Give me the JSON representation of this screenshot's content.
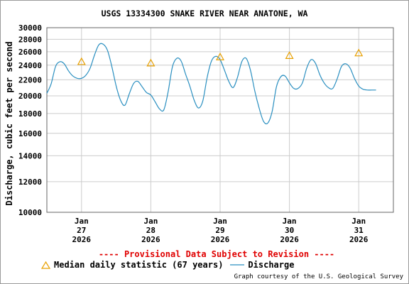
{
  "chart_data": {
    "type": "line",
    "title": "USGS 13334300 SNAKE RIVER NEAR ANATONE, WA",
    "ylabel": "Discharge, cubic feet per second",
    "xlabel": "",
    "y_scale": "log",
    "ylim": [
      10000,
      30000
    ],
    "y_ticks": [
      {
        "value": 10000,
        "label": "10000"
      },
      {
        "value": 12000,
        "label": "12000"
      },
      {
        "value": 14000,
        "label": "14000"
      },
      {
        "value": 16000,
        "label": "16000"
      },
      {
        "value": 18000,
        "label": "18000"
      },
      {
        "value": 20000,
        "label": "20000"
      },
      {
        "value": 22000,
        "label": "22000"
      },
      {
        "value": 24000,
        "label": "24000"
      },
      {
        "value": 26000,
        "label": "26000"
      },
      {
        "value": 28000,
        "label": "28000"
      },
      {
        "value": 30000,
        "label": "30000"
      }
    ],
    "xlim": [
      "2026-01-26 12:00",
      "2026-01-31 12:00"
    ],
    "x_ticks": [
      {
        "x": "2026-01-27 00:00",
        "lines": [
          "Jan",
          "27",
          "2026"
        ]
      },
      {
        "x": "2026-01-28 00:00",
        "lines": [
          "Jan",
          "28",
          "2026"
        ]
      },
      {
        "x": "2026-01-29 00:00",
        "lines": [
          "Jan",
          "29",
          "2026"
        ]
      },
      {
        "x": "2026-01-30 00:00",
        "lines": [
          "Jan",
          "30",
          "2026"
        ]
      },
      {
        "x": "2026-01-31 00:00",
        "lines": [
          "Jan",
          "31",
          "2026"
        ]
      }
    ],
    "grid": true,
    "series": [
      {
        "name": "Discharge",
        "color": "#2a8fc0",
        "points": [
          [
            "2026-01-26 12:00",
            20300
          ],
          [
            "2026-01-26 13:30",
            21500
          ],
          [
            "2026-01-26 15:00",
            23800
          ],
          [
            "2026-01-26 16:30",
            24500
          ],
          [
            "2026-01-26 18:00",
            24200
          ],
          [
            "2026-01-26 19:30",
            23200
          ],
          [
            "2026-01-26 21:00",
            22500
          ],
          [
            "2026-01-26 22:30",
            22200
          ],
          [
            "2026-01-27 00:00",
            22200
          ],
          [
            "2026-01-27 01:30",
            22600
          ],
          [
            "2026-01-27 03:00",
            23600
          ],
          [
            "2026-01-27 04:30",
            25500
          ],
          [
            "2026-01-27 06:00",
            27100
          ],
          [
            "2026-01-27 07:30",
            27200
          ],
          [
            "2026-01-27 09:00",
            26200
          ],
          [
            "2026-01-27 10:30",
            23800
          ],
          [
            "2026-01-27 12:00",
            21200
          ],
          [
            "2026-01-27 13:30",
            19500
          ],
          [
            "2026-01-27 15:00",
            18900
          ],
          [
            "2026-01-27 16:30",
            20200
          ],
          [
            "2026-01-27 18:00",
            21500
          ],
          [
            "2026-01-27 19:30",
            21800
          ],
          [
            "2026-01-27 21:00",
            21100
          ],
          [
            "2026-01-27 22:30",
            20400
          ],
          [
            "2026-01-28 00:00",
            20100
          ],
          [
            "2026-01-28 01:30",
            19300
          ],
          [
            "2026-01-28 03:00",
            18500
          ],
          [
            "2026-01-28 04:30",
            18400
          ],
          [
            "2026-01-28 06:00",
            20500
          ],
          [
            "2026-01-28 07:30",
            23800
          ],
          [
            "2026-01-28 09:00",
            25000
          ],
          [
            "2026-01-28 10:30",
            24600
          ],
          [
            "2026-01-28 12:00",
            22800
          ],
          [
            "2026-01-28 13:30",
            21200
          ],
          [
            "2026-01-28 15:00",
            19500
          ],
          [
            "2026-01-28 16:30",
            18600
          ],
          [
            "2026-01-28 18:00",
            19400
          ],
          [
            "2026-01-28 19:30",
            22300
          ],
          [
            "2026-01-28 21:00",
            24600
          ],
          [
            "2026-01-28 22:30",
            25300
          ],
          [
            "2026-01-29 00:00",
            24800
          ],
          [
            "2026-01-29 01:30",
            23300
          ],
          [
            "2026-01-29 03:00",
            21800
          ],
          [
            "2026-01-29 04:30",
            21000
          ],
          [
            "2026-01-29 06:00",
            22300
          ],
          [
            "2026-01-29 07:30",
            24500
          ],
          [
            "2026-01-29 09:00",
            25000
          ],
          [
            "2026-01-29 10:30",
            23300
          ],
          [
            "2026-01-29 12:00",
            20600
          ],
          [
            "2026-01-29 13:30",
            18600
          ],
          [
            "2026-01-29 15:00",
            17200
          ],
          [
            "2026-01-29 16:30",
            17000
          ],
          [
            "2026-01-29 18:00",
            18200
          ],
          [
            "2026-01-29 19:30",
            21100
          ],
          [
            "2026-01-29 21:00",
            22400
          ],
          [
            "2026-01-29 22:30",
            22500
          ],
          [
            "2026-01-30 00:00",
            21600
          ],
          [
            "2026-01-30 01:30",
            20900
          ],
          [
            "2026-01-30 03:00",
            20900
          ],
          [
            "2026-01-30 04:30",
            21600
          ],
          [
            "2026-01-30 06:00",
            23600
          ],
          [
            "2026-01-30 07:30",
            24800
          ],
          [
            "2026-01-30 09:00",
            24300
          ],
          [
            "2026-01-30 10:30",
            22700
          ],
          [
            "2026-01-30 12:00",
            21600
          ],
          [
            "2026-01-30 13:30",
            21000
          ],
          [
            "2026-01-30 15:00",
            20900
          ],
          [
            "2026-01-30 16:30",
            22100
          ],
          [
            "2026-01-30 18:00",
            23800
          ],
          [
            "2026-01-30 19:30",
            24200
          ],
          [
            "2026-01-30 21:00",
            23600
          ],
          [
            "2026-01-30 22:30",
            22200
          ],
          [
            "2026-01-31 00:00",
            21200
          ],
          [
            "2026-01-31 01:30",
            20800
          ],
          [
            "2026-01-31 03:00",
            20700
          ],
          [
            "2026-01-31 04:30",
            20700
          ],
          [
            "2026-01-31 06:00",
            20700
          ]
        ]
      },
      {
        "name": "Median daily statistic (67 years)",
        "marker": "triangle",
        "color": "#e8a000",
        "points": [
          [
            "2026-01-27 00:00",
            24500
          ],
          [
            "2026-01-28 00:00",
            24300
          ],
          [
            "2026-01-29 00:00",
            25200
          ],
          [
            "2026-01-30 00:00",
            25400
          ],
          [
            "2026-01-31 00:00",
            25800
          ]
        ]
      }
    ]
  },
  "notice": "---- Provisional Data Subject to Revision ----",
  "legend": {
    "median_label": "Median daily statistic (67 years)",
    "discharge_label": "Discharge"
  },
  "credit": "Graph courtesy of the U.S. Geological Survey"
}
